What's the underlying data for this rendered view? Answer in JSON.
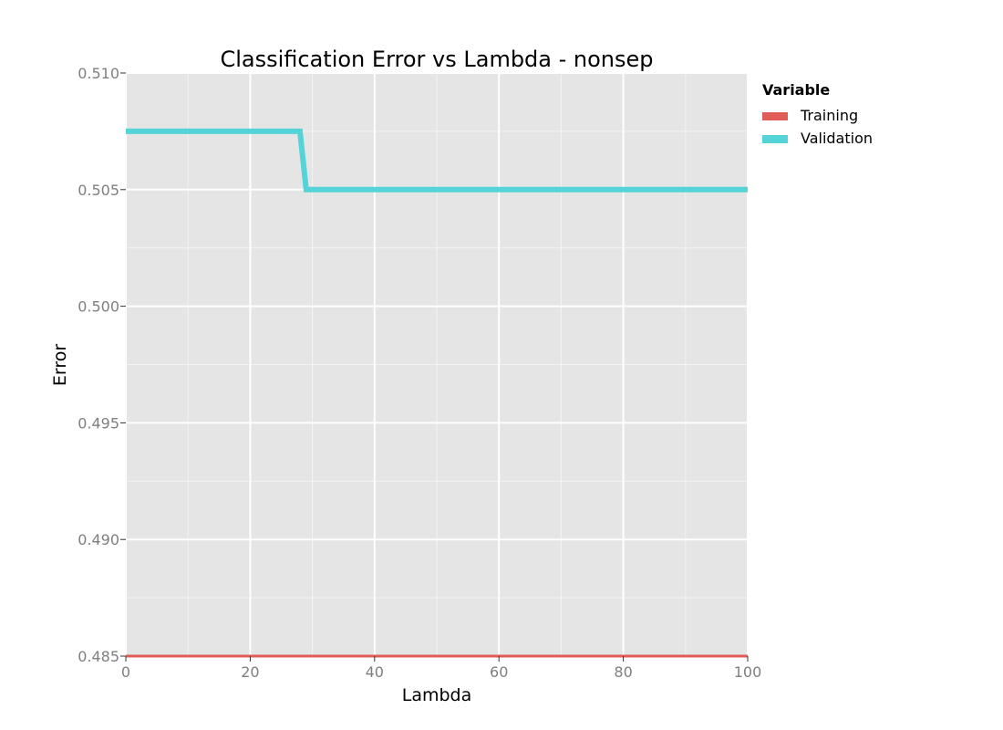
{
  "chart_data": {
    "type": "line",
    "title": "Classification Error vs Lambda - nonsep",
    "xlabel": "Lambda",
    "ylabel": "Error",
    "xlim": [
      0,
      100
    ],
    "ylim": [
      0.485,
      0.51
    ],
    "xticks": [
      0,
      20,
      40,
      60,
      80,
      100
    ],
    "xtick_labels": [
      "0",
      "20",
      "40",
      "60",
      "80",
      "100"
    ],
    "yticks": [
      0.485,
      0.49,
      0.495,
      0.5,
      0.505,
      0.51
    ],
    "ytick_labels": [
      "0.485",
      "0.490",
      "0.495",
      "0.500",
      "0.505",
      "0.510"
    ],
    "grid": true,
    "legend": {
      "title": "Variable",
      "placement": "right"
    },
    "series": [
      {
        "name": "Training",
        "color": "#e05d57",
        "x": [
          0,
          100
        ],
        "y": [
          0.485,
          0.485
        ]
      },
      {
        "name": "Validation",
        "color": "#54d3d8",
        "x": [
          0,
          28,
          29,
          100
        ],
        "y": [
          0.5075,
          0.5075,
          0.505,
          0.505
        ]
      }
    ]
  },
  "style": {
    "panel_color": "#e5e5e5",
    "grid_color": "#ffffff"
  }
}
